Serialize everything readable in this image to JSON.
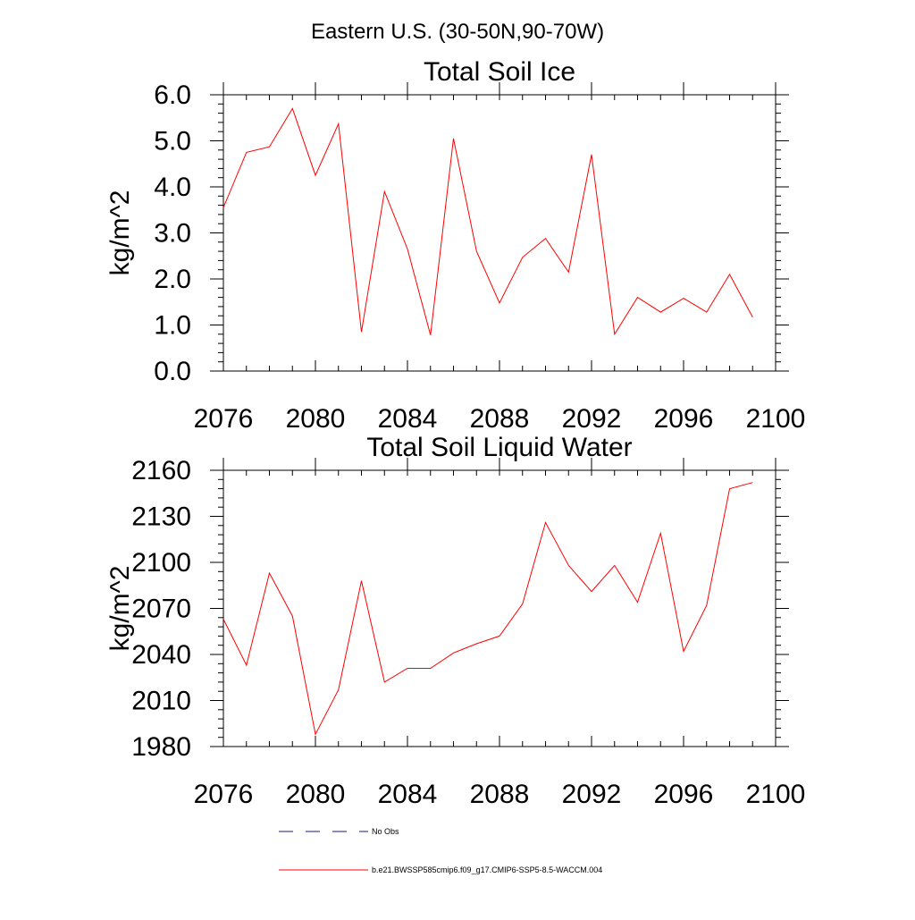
{
  "page": {
    "title": "Eastern U.S. (30-50N,90-70W)"
  },
  "colors": {
    "series": "#ff0000",
    "obs": "#1a1a7a",
    "axis": "#000000"
  },
  "chart_data": [
    {
      "type": "line",
      "title": "Total Soil Ice",
      "ylabel": "kg/m^2",
      "xlabel": "",
      "xlim": [
        2076,
        2100
      ],
      "ylim": [
        0,
        6
      ],
      "xticks": [
        2076,
        2080,
        2084,
        2088,
        2092,
        2096,
        2100
      ],
      "xtick_labels": [
        "2076",
        "2080",
        "2084",
        "2088",
        "2092",
        "2096",
        "2100"
      ],
      "yticks": [
        0,
        1,
        2,
        3,
        4,
        5,
        6
      ],
      "ytick_labels": [
        "0.0",
        "1.0",
        "2.0",
        "3.0",
        "4.0",
        "5.0",
        "6.0"
      ],
      "grid": false,
      "x": [
        2076,
        2077,
        2078,
        2079,
        2080,
        2081,
        2082,
        2083,
        2084,
        2085,
        2086,
        2087,
        2088,
        2089,
        2090,
        2091,
        2092,
        2093,
        2094,
        2095,
        2096,
        2097,
        2098,
        2099
      ],
      "values": [
        3.55,
        4.75,
        4.87,
        5.7,
        4.25,
        5.37,
        0.85,
        3.9,
        2.65,
        0.78,
        5.05,
        2.6,
        1.48,
        2.47,
        2.88,
        2.15,
        4.7,
        0.8,
        1.6,
        1.28,
        1.58,
        1.28,
        2.1,
        1.17
      ]
    },
    {
      "type": "line",
      "title": "Total Soil Liquid Water",
      "ylabel": "kg/m^2",
      "xlabel": "",
      "xlim": [
        2076,
        2100
      ],
      "ylim": [
        1980,
        2160
      ],
      "xticks": [
        2076,
        2080,
        2084,
        2088,
        2092,
        2096,
        2100
      ],
      "xtick_labels": [
        "2076",
        "2080",
        "2084",
        "2088",
        "2092",
        "2096",
        "2100"
      ],
      "yticks": [
        1980,
        2010,
        2040,
        2070,
        2100,
        2130,
        2160
      ],
      "ytick_labels": [
        "1980",
        "2010",
        "2040",
        "2070",
        "2100",
        "2130",
        "2160"
      ],
      "grid": false,
      "x": [
        2076,
        2077,
        2078,
        2079,
        2080,
        2081,
        2082,
        2083,
        2084,
        2085,
        2086,
        2087,
        2088,
        2089,
        2090,
        2091,
        2092,
        2093,
        2094,
        2095,
        2096,
        2097,
        2098,
        2099
      ],
      "values": [
        2063,
        2033,
        2093,
        2065,
        1988,
        2017,
        2088,
        2022,
        2031,
        2031,
        2041,
        2047,
        2052,
        2073,
        2126,
        2098,
        2081,
        2098,
        2074,
        2119,
        2042,
        2072,
        2148,
        2152
      ]
    }
  ],
  "legend": {
    "placement": "bottom",
    "entries": [
      {
        "label": "No Obs",
        "style": "dashed"
      },
      {
        "label": "b.e21.BWSSP585cmip6.f09_g17.CMIP6-SSP5-8.5-WACCM.004",
        "style": "solid"
      }
    ]
  }
}
